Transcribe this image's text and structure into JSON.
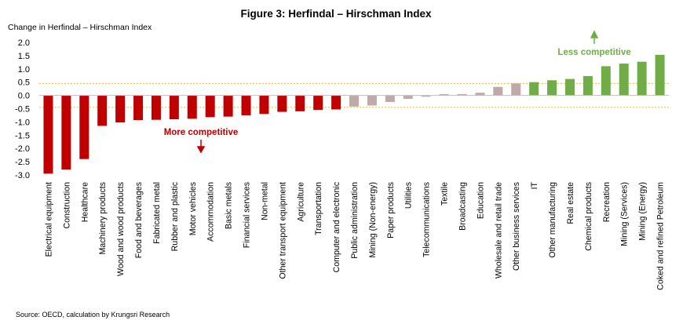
{
  "chart_data": {
    "type": "bar",
    "title": "Figure 3: Herfindal – Hirschman Index",
    "ylabel": "Change in Herfindal – Hirschman Index",
    "xlabel": "",
    "ylim": [
      -3.0,
      2.0
    ],
    "yticks": [
      "2.0",
      "1.5",
      "1.0",
      "0.5",
      "0.0",
      "-0.5",
      "-1.0",
      "-1.5",
      "-2.0",
      "-2.5",
      "-3.0"
    ],
    "grid": false,
    "reference_lines": [
      0.45,
      -0.45
    ],
    "categories": [
      "Electrical equipment",
      "Construction",
      "Healthcare",
      "Machinery products",
      "Wood and wood products",
      "Food and beverages",
      "Fabricated metal",
      "Rubber and plastic",
      "Motor vehicles",
      "Accommodation",
      "Basic metals",
      "Financial services",
      "Non-metal",
      "Other transport equipment",
      "Agriculture",
      "Transportation",
      "Computer and electronic",
      "Public administration",
      "Mining (Non-energy)",
      "Paper products",
      "Utilities",
      "Telecommunications",
      "Textile",
      "Broadcasting",
      "Education",
      "Wholesale and retail trade",
      "Other business services",
      "IT",
      "Other manufacturing",
      "Real estate",
      "Chemical products",
      "Recreation",
      "Mining (Services)",
      "Mining (Energy)",
      "Coked and refined Petroleum"
    ],
    "values": [
      -2.95,
      -2.8,
      -2.4,
      -1.15,
      -1.02,
      -0.93,
      -0.92,
      -0.9,
      -0.88,
      -0.82,
      -0.8,
      -0.75,
      -0.7,
      -0.62,
      -0.6,
      -0.55,
      -0.53,
      -0.42,
      -0.38,
      -0.25,
      -0.13,
      -0.05,
      0.05,
      0.05,
      0.1,
      0.32,
      0.45,
      0.5,
      0.57,
      0.62,
      0.73,
      1.1,
      1.2,
      1.27,
      1.53
    ],
    "groups": [
      "red",
      "red",
      "red",
      "red",
      "red",
      "red",
      "red",
      "red",
      "red",
      "red",
      "red",
      "red",
      "red",
      "red",
      "red",
      "red",
      "red",
      "grey",
      "grey",
      "grey",
      "grey",
      "grey",
      "grey",
      "grey",
      "grey",
      "grey",
      "grey",
      "green",
      "green",
      "green",
      "green",
      "green",
      "green",
      "green",
      "green"
    ],
    "colors": {
      "red": "#C00000",
      "grey": "#BFA9A9",
      "green": "#70AD47",
      "ref_line": "#D9C34A",
      "axis": "#BFBFBF",
      "annotation_red": "#C00000",
      "annotation_green": "#70AD47"
    },
    "annotations": [
      {
        "text": "More competitive",
        "color": "red",
        "arrow": "down"
      },
      {
        "text": "Less competitive",
        "color": "green",
        "arrow": "up"
      }
    ]
  },
  "source": "Source: OECD, calculation by Krungsri Research"
}
